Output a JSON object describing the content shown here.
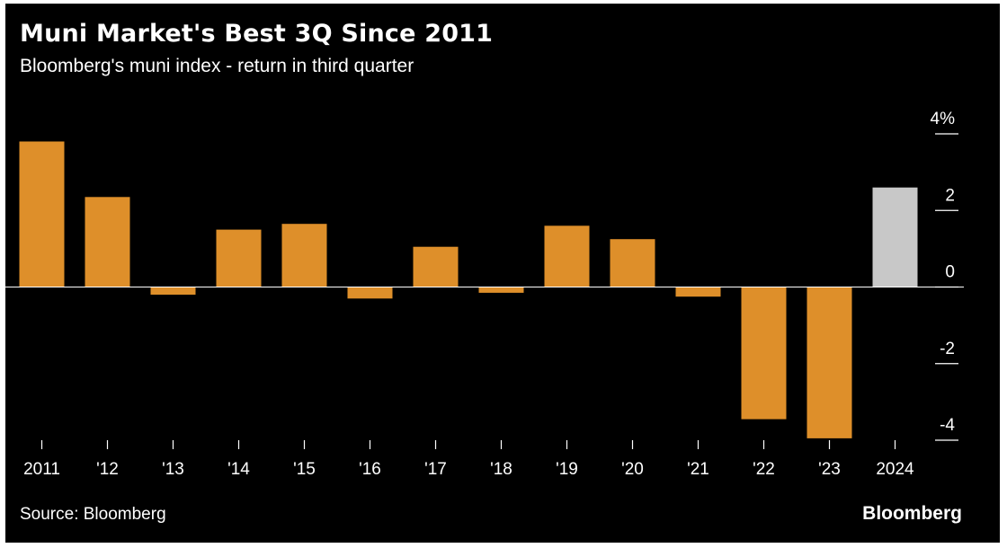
{
  "header": {
    "title": "Muni Market's Best 3Q Since 2011",
    "subtitle": "Bloomberg's muni index - return in third quarter"
  },
  "footer": {
    "source": "Source: Bloomberg",
    "brand": "Bloomberg"
  },
  "colors": {
    "background": "#000000",
    "bar": "#de8f2a",
    "highlight_bar": "#c8c8c8",
    "axis": "#ffffff"
  },
  "chart_data": {
    "type": "bar",
    "title": "Muni Market's Best 3Q Since 2011",
    "subtitle": "Bloomberg's muni index - return in third quarter",
    "xlabel": "",
    "ylabel": "",
    "categories": [
      "2011",
      "'12",
      "'13",
      "'14",
      "'15",
      "'16",
      "'17",
      "'18",
      "'19",
      "'20",
      "'21",
      "'22",
      "'23",
      "2024"
    ],
    "values": [
      3.8,
      2.35,
      -0.2,
      1.5,
      1.65,
      -0.3,
      1.05,
      -0.15,
      1.6,
      1.25,
      -0.25,
      -3.45,
      -3.95,
      2.6
    ],
    "highlight": [
      "2024"
    ],
    "ylim": [
      -4,
      4
    ],
    "yticks": [
      4,
      2,
      0,
      -2,
      -4
    ],
    "ytick_labels": [
      "4%",
      "2",
      "0",
      "-2",
      "-4"
    ],
    "y_axis_position": "right",
    "grid": false,
    "legend": "none"
  }
}
